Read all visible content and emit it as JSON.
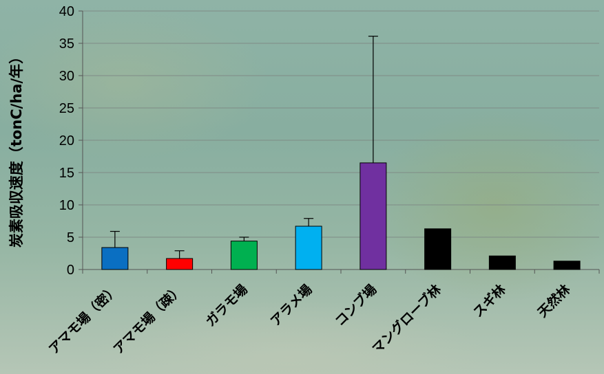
{
  "chart_data": {
    "type": "bar",
    "ylabel": "炭素吸収速度（tonC/ha/年）",
    "xlabel": "",
    "ylim": [
      0,
      40
    ],
    "yticks": [
      0,
      5,
      10,
      15,
      20,
      25,
      30,
      35,
      40
    ],
    "grid": true,
    "categories": [
      "アマモ場（密）",
      "アマモ場（疎）",
      "ガラモ場",
      "アラメ場",
      "コンブ場",
      "マングローブ林",
      "スギ林",
      "天然林"
    ],
    "values": [
      3.4,
      1.7,
      4.4,
      6.7,
      16.5,
      6.3,
      2.1,
      1.3
    ],
    "error_upper": [
      5.9,
      2.9,
      5.0,
      7.9,
      36.1,
      null,
      null,
      null
    ],
    "colors": [
      "#0a6fc2",
      "#ff0000",
      "#00b050",
      "#00b0f0",
      "#7030a0",
      "#000000",
      "#000000",
      "#000000"
    ]
  }
}
